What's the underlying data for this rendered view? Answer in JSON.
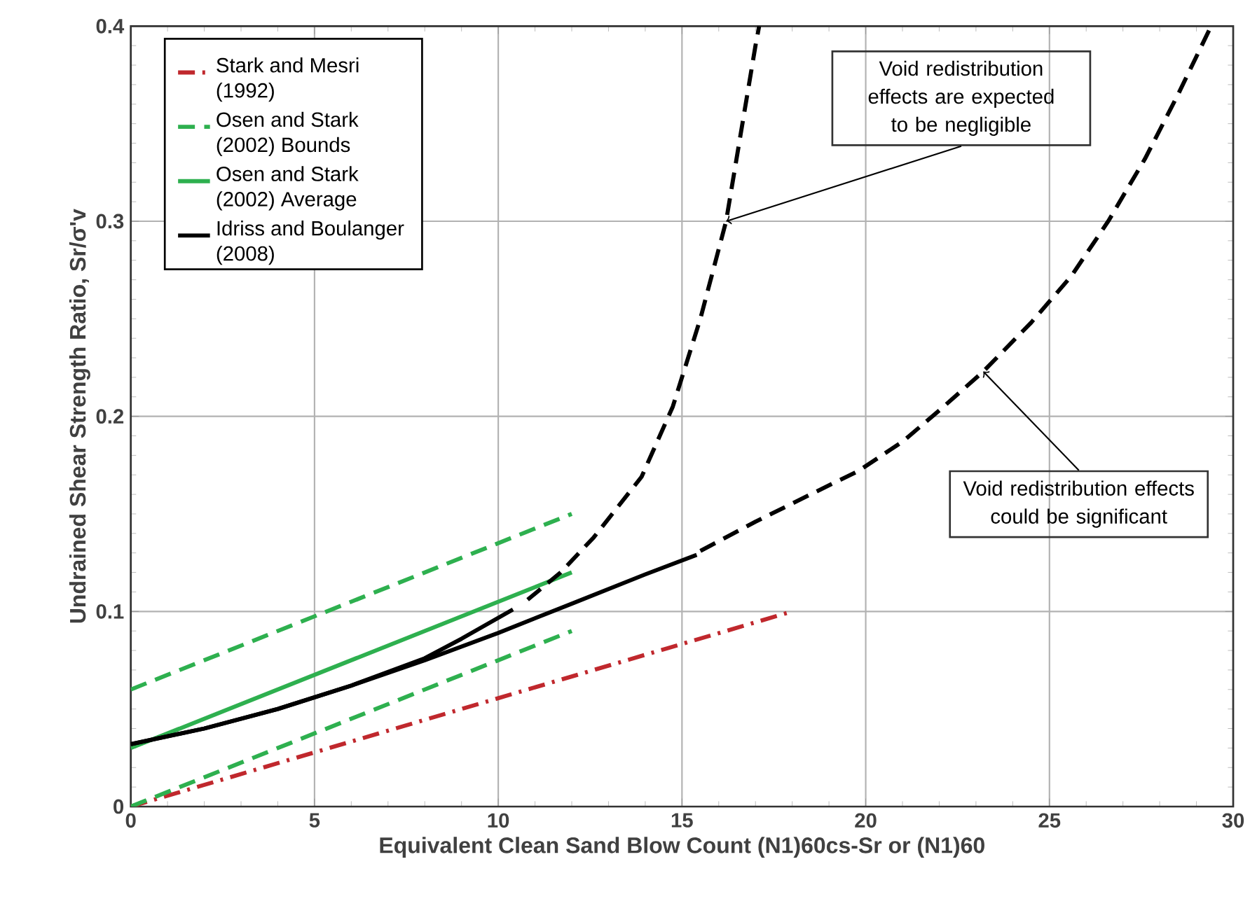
{
  "chart_data": {
    "type": "line",
    "xlabel": "Equivalent Clean Sand Blow Count (N1)60cs-Sr or (N1)60",
    "ylabel": "Undrained Shear Strength Ratio, Sr/σ'v",
    "xlim": [
      0,
      30
    ],
    "ylim": [
      0,
      0.4
    ],
    "xticks": [
      0,
      5,
      10,
      15,
      20,
      25,
      30
    ],
    "yticks": [
      0,
      0.1,
      0.2,
      0.3,
      0.4
    ],
    "grid": true,
    "legend": "top left",
    "series": [
      {
        "name": "Stark and Mesri (1992)",
        "color": "#c0282d",
        "line_style": "dashdot",
        "x": [
          0,
          18
        ],
        "values": [
          0,
          0.1
        ]
      },
      {
        "name": "Osen and Stark (2002) Bounds",
        "color": "#2eb04f",
        "line_style": "dashed",
        "x": [
          0,
          12
        ],
        "values": [
          0.06,
          0.15
        ]
      },
      {
        "color": "#2eb04f",
        "line_style": "dashed",
        "x": [
          0,
          12
        ],
        "values": [
          0,
          0.09
        ]
      },
      {
        "name": "Osen and Stark (2002) Average",
        "color": "#2eb04f",
        "line_style": "solid",
        "x": [
          0,
          12
        ],
        "values": [
          0.03,
          0.12
        ]
      },
      {
        "name": "Idriss and Boulanger (2008)",
        "color": "#000000",
        "line_style": "solid",
        "x": [
          0,
          2,
          4,
          6,
          8,
          10,
          12,
          14,
          15.4
        ],
        "values": [
          0.032,
          0.04,
          0.05,
          0.062,
          0.075,
          0.089,
          0.104,
          0.119,
          0.129
        ]
      },
      {
        "color": "#000000",
        "line_style": "solid",
        "x": [
          0,
          2,
          4,
          6,
          8,
          9,
          10.4
        ],
        "values": [
          0.032,
          0.04,
          0.05,
          0.062,
          0.076,
          0.086,
          0.101
        ]
      },
      {
        "color": "#000000",
        "line_style": "dashed",
        "x": [
          10.8,
          11.7,
          12.6,
          13.9,
          14.75,
          15.5,
          16.2,
          16.6,
          17.0,
          17.1
        ],
        "values": [
          0.106,
          0.12,
          0.138,
          0.169,
          0.205,
          0.25,
          0.3,
          0.345,
          0.39,
          0.4
        ]
      },
      {
        "color": "#000000",
        "line_style": "dashed",
        "x": [
          15.5,
          17,
          18.5,
          19.8,
          21,
          22,
          23.2,
          24.5,
          25.6,
          26.6,
          27.6,
          28.5,
          29.4
        ],
        "values": [
          0.131,
          0.146,
          0.16,
          0.172,
          0.187,
          0.203,
          0.223,
          0.248,
          0.272,
          0.3,
          0.332,
          0.365,
          0.4
        ]
      }
    ],
    "annotations": [
      {
        "text": "Void redistribution effects are expected to be negligible",
        "x": 16.2,
        "y": 0.3
      },
      {
        "text": "Void redistribution effects could be significant",
        "x": 23.2,
        "y": 0.223
      }
    ]
  }
}
